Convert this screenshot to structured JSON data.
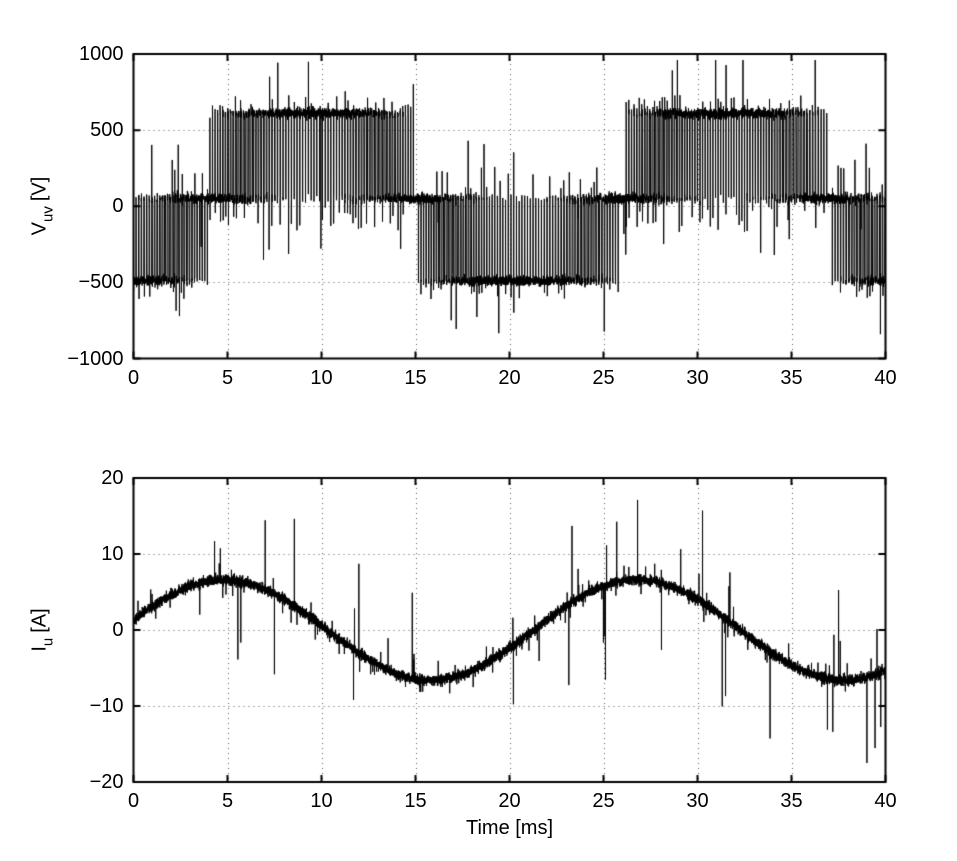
{
  "figure": {
    "background_color": "#ffffff",
    "trace_color": "#000000",
    "axis_color": "#000000",
    "grid_color": "#5d5d5d",
    "grid_style": "dotted"
  },
  "chart_data": [
    {
      "type": "line",
      "title": "",
      "ylabel_base": "V",
      "ylabel_sub": "uv",
      "ylabel_unit": "[V]",
      "xlabel": "",
      "xlim": [
        0,
        40
      ],
      "ylim": [
        -1000,
        1000
      ],
      "x_ticks": [
        0,
        5,
        10,
        15,
        20,
        25,
        30,
        35,
        40
      ],
      "x_tick_labels": [
        "0",
        "5",
        "10",
        "15",
        "20",
        "25",
        "30",
        "35",
        "40"
      ],
      "y_ticks": [
        1000,
        500,
        0,
        -500,
        -1000
      ],
      "y_tick_labels": [
        "1000",
        "500",
        "0",
        "−500",
        "−1000"
      ],
      "grid": true,
      "legend": null,
      "signal": {
        "kind": "pwm_line_voltage",
        "description": "PWM inverter line-to-line voltage: pulse trains from ~+50 V baseline up to ~+610 V during positive half-cycles (4-15 ms and 26-37 ms) and down to ~-490 V during negative half-cycles (0-4 ms, 15-26 ms, 37-40 ms), pulse density follows |sin|, switching overshoot spikes reaching ~+960 V and ~-840 V",
        "fundamental_period_ms": 22,
        "positive_intervals_ms": [
          [
            4,
            15
          ],
          [
            26,
            37
          ]
        ],
        "negative_intervals_ms": [
          [
            0,
            4
          ],
          [
            15,
            26
          ],
          [
            37,
            40
          ]
        ],
        "baseline_V": 50,
        "positive_pulse_level_V": 610,
        "negative_pulse_level_V": -490,
        "spike_max_V": 960,
        "spike_min_V": -840,
        "switching_freq_kHz": 7,
        "level_noise_V": 16
      }
    },
    {
      "type": "line",
      "title": "",
      "ylabel_base": "I",
      "ylabel_sub": "u",
      "ylabel_unit": "[A]",
      "xlabel": "Time [ms]",
      "xlim": [
        0,
        40
      ],
      "ylim": [
        -20,
        20
      ],
      "x_ticks": [
        0,
        5,
        10,
        15,
        20,
        25,
        30,
        35,
        40
      ],
      "x_tick_labels": [
        "0",
        "5",
        "10",
        "15",
        "20",
        "25",
        "30",
        "35",
        "40"
      ],
      "y_ticks": [
        20,
        10,
        0,
        -10,
        -20
      ],
      "y_tick_labels": [
        "20",
        "10",
        "0",
        "−10",
        "−20"
      ],
      "grid": true,
      "legend": null,
      "signal": {
        "kind": "noisy_sine",
        "description": "Motor phase current: ~6.6 A amplitude sine, period ~22 ms (peaks ~+6.8 A near 5 ms and 27 ms, troughs ~-6.2 A near 16 ms and 38 ms), thick high-frequency ripple band and narrow switching spikes up to ~+18.4 A and ~-17.5 A",
        "amplitude_A": 6.6,
        "period_ms": 22,
        "zero_crossing_rising_ms": -0.7,
        "peak_value_A": 6.8,
        "trough_value_A": -6.2,
        "hf_noise_A": 0.33,
        "spike_max_A": 18.4,
        "spike_min_A": -17.5
      }
    }
  ]
}
